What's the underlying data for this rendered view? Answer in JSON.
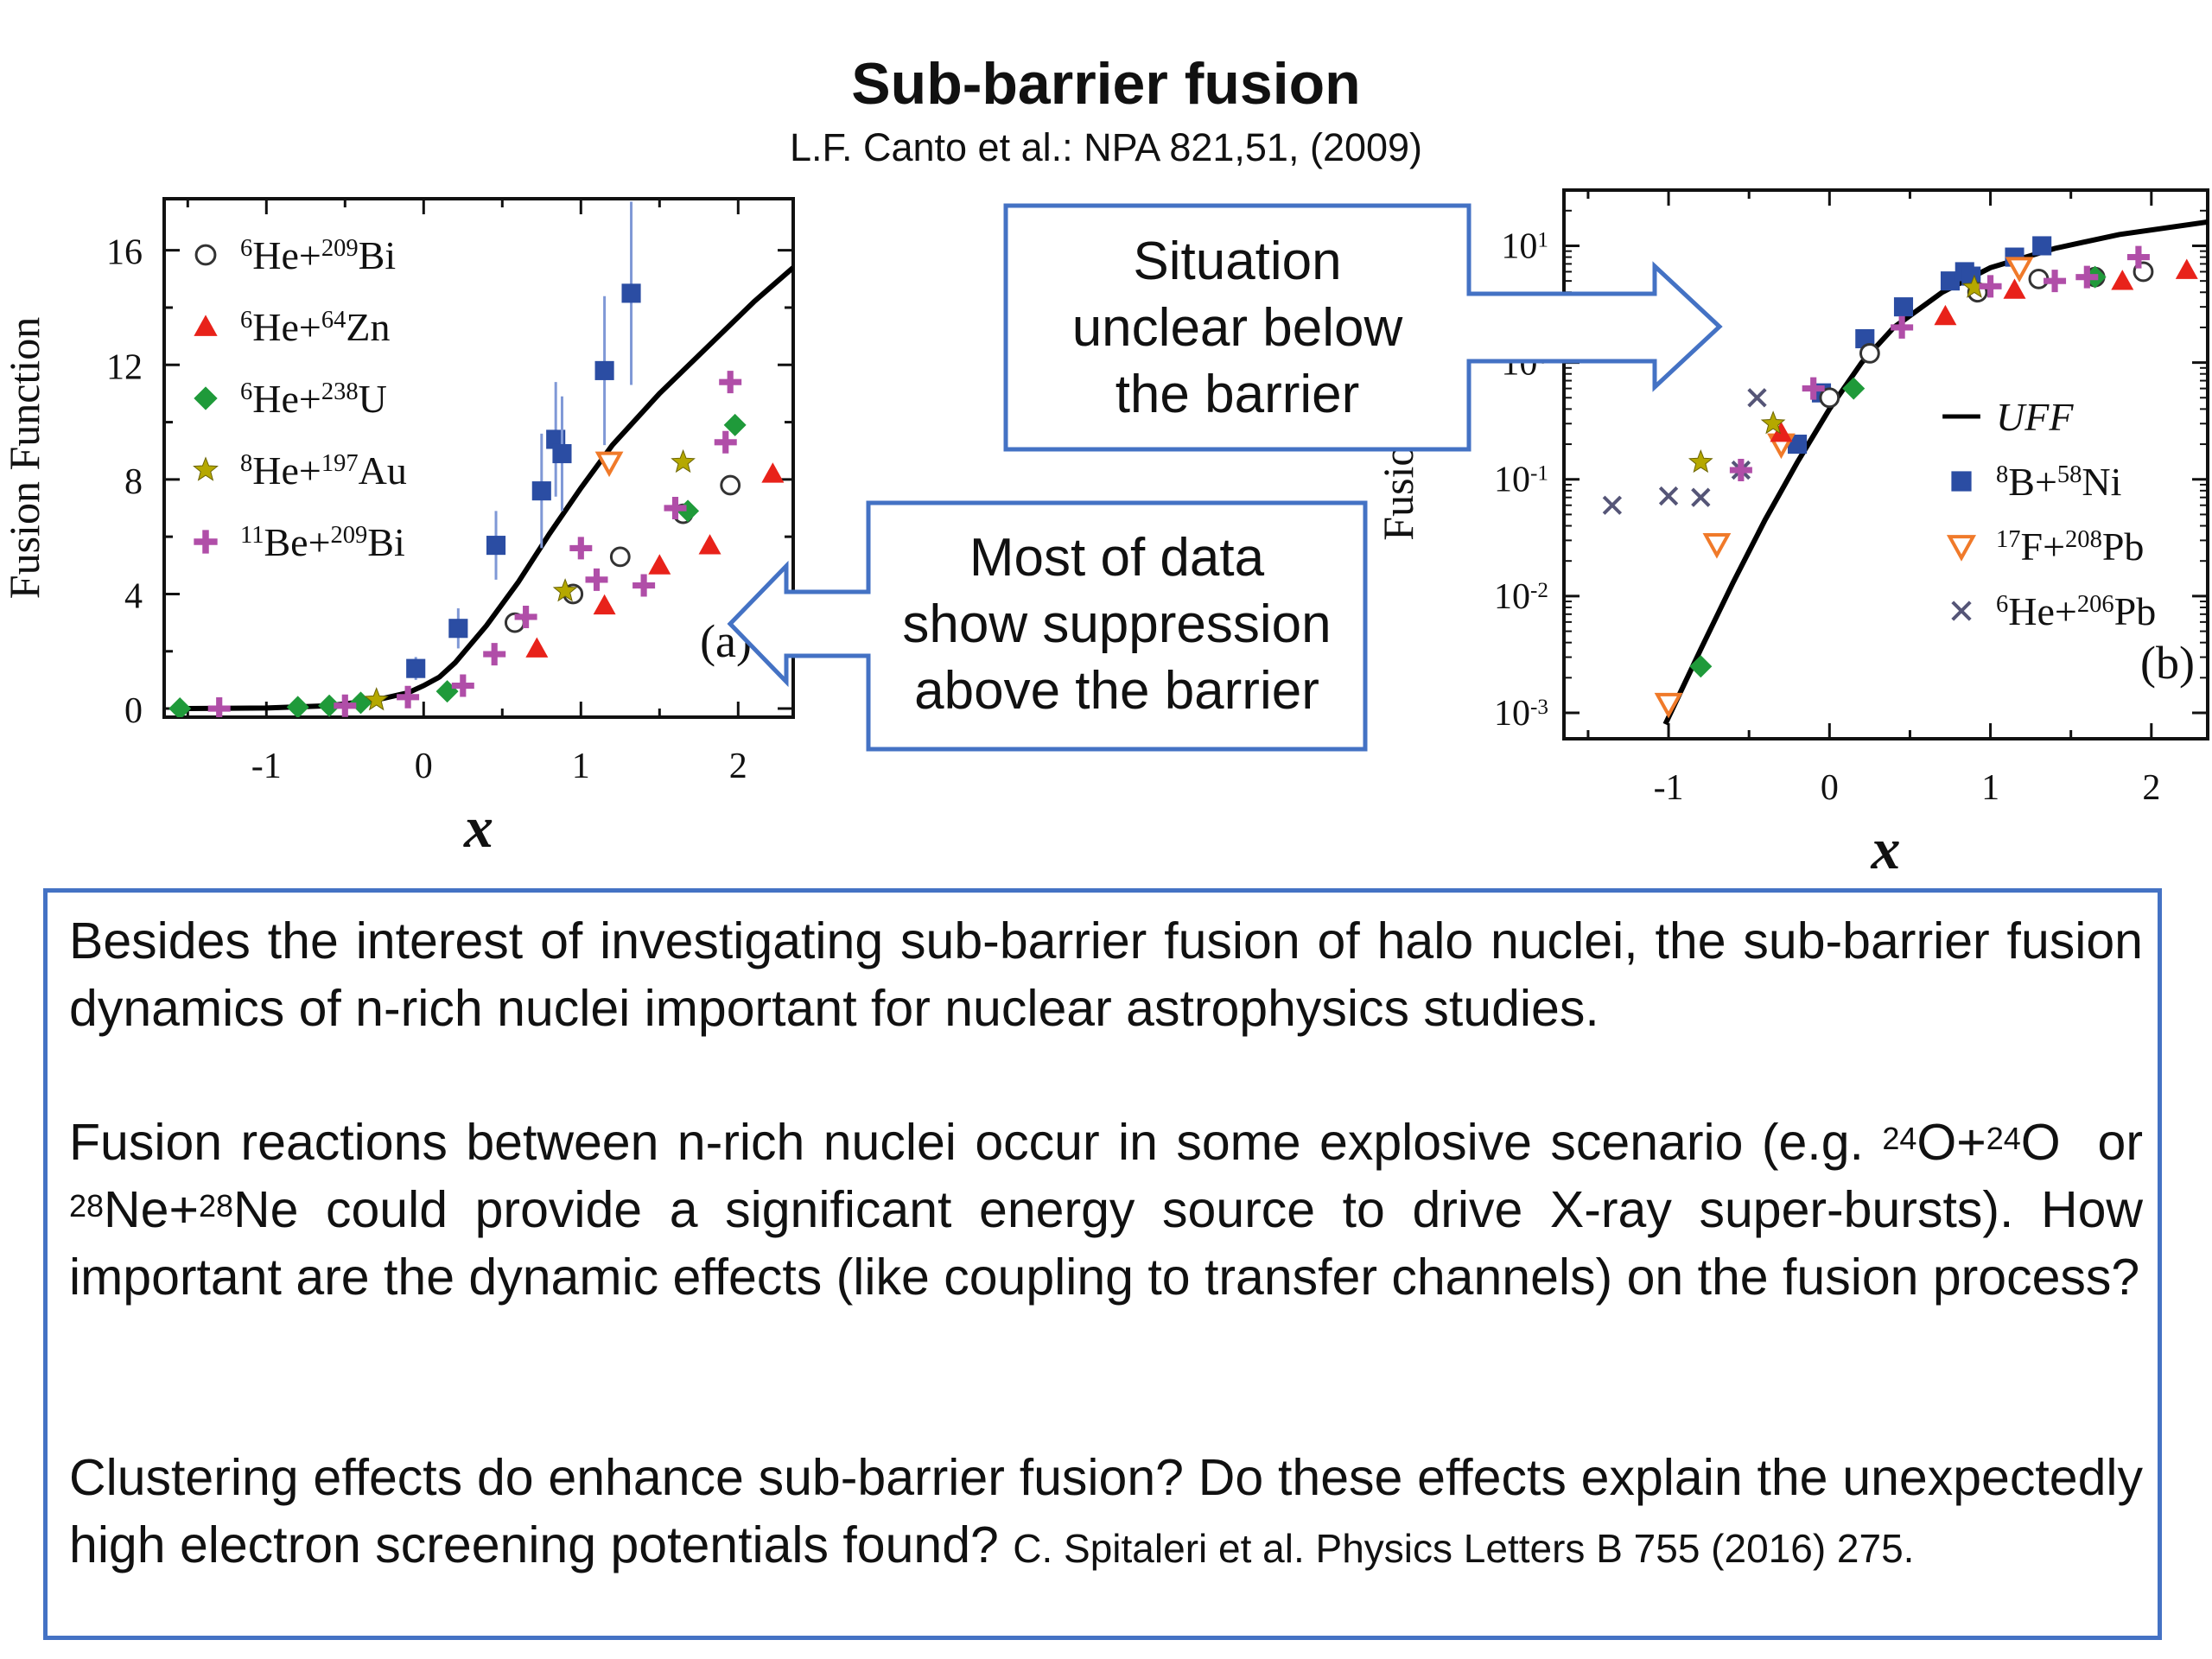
{
  "header": {
    "title": "Sub-barrier fusion",
    "citation": "L.F.  Canto et al.: NPA 821,51, (2009)"
  },
  "chart_data": [
    {
      "type": "scatter",
      "panel_label": "(a)",
      "xlabel": "x",
      "ylabel": "Fusion Function",
      "xlim": [
        -1.65,
        2.35
      ],
      "ylim": [
        -0.3,
        17.8
      ],
      "xticks": [
        "-1",
        "0",
        "1",
        "2"
      ],
      "yticks": [
        "0",
        "4",
        "8",
        "12",
        "16"
      ],
      "legend": [
        {
          "label": "6He+209Bi",
          "marker": "circle-open",
          "color": "#333333"
        },
        {
          "label": "6He+64Zn",
          "marker": "triangle",
          "color": "#e8221a"
        },
        {
          "label": "6He+238U",
          "marker": "diamond",
          "color": "#1f9a3a"
        },
        {
          "label": "8He+197Au",
          "marker": "star",
          "color": "#b5a800"
        },
        {
          "label": "11Be+209Bi",
          "marker": "plus",
          "color": "#b04ea8"
        }
      ],
      "curve": {
        "name": "UFF",
        "x": [
          -1.6,
          -1.0,
          -0.6,
          -0.3,
          -0.1,
          0.0,
          0.1,
          0.2,
          0.4,
          0.6,
          0.8,
          1.0,
          1.2,
          1.5,
          1.8,
          2.1,
          2.35
        ],
        "y": [
          0.0,
          0.02,
          0.1,
          0.3,
          0.55,
          0.8,
          1.1,
          1.6,
          2.9,
          4.4,
          6.1,
          7.7,
          9.2,
          11.0,
          12.6,
          14.2,
          15.4
        ]
      },
      "series": [
        {
          "name": "6He+209Bi",
          "x": [
            0.58,
            0.95,
            1.25,
            1.65,
            1.95
          ],
          "y": [
            3.0,
            4.0,
            5.3,
            6.8,
            7.8
          ]
        },
        {
          "name": "6He+64Zn",
          "x": [
            0.72,
            1.15,
            1.5,
            1.82,
            2.22
          ],
          "y": [
            2.1,
            3.6,
            5.0,
            5.7,
            8.2
          ]
        },
        {
          "name": "6He+238U",
          "x": [
            -1.55,
            -0.8,
            -0.6,
            -0.4,
            0.15,
            1.68,
            1.98
          ],
          "y": [
            0.0,
            0.05,
            0.1,
            0.2,
            0.6,
            6.9,
            9.9
          ]
        },
        {
          "name": "8He+197Au",
          "x": [
            -0.3,
            0.9,
            1.65
          ],
          "y": [
            0.3,
            4.1,
            8.6
          ]
        },
        {
          "name": "11Be+209Bi",
          "x": [
            -1.3,
            -0.5,
            -0.1,
            0.25,
            0.45,
            0.65,
            1.0,
            1.1,
            1.4,
            1.6,
            1.92,
            1.95
          ],
          "y": [
            0.0,
            0.1,
            0.4,
            0.8,
            1.9,
            3.2,
            5.6,
            4.5,
            4.3,
            7.0,
            9.3,
            11.4
          ]
        },
        {
          "name": "8B+58Ni",
          "x": [
            -0.05,
            0.22,
            0.46,
            0.75,
            0.84,
            0.88,
            1.15,
            1.32
          ],
          "y": [
            1.4,
            2.8,
            5.7,
            7.6,
            9.4,
            8.9,
            11.8,
            14.5
          ],
          "err": [
            0.4,
            0.7,
            1.2,
            2.0,
            2.0,
            2.0,
            2.6,
            3.2
          ]
        },
        {
          "name": "17F+208Pb",
          "x": [
            1.18
          ],
          "y": [
            8.6
          ]
        }
      ]
    },
    {
      "type": "scatter",
      "panel_label": "(b)",
      "xlabel": "x",
      "ylabel": "Fusion F",
      "yscale": "log",
      "xlim": [
        -1.65,
        2.35
      ],
      "ylim": [
        0.0006,
        30
      ],
      "xticks": [
        "-1",
        "0",
        "1",
        "2"
      ],
      "yticks": [
        "10-3",
        "10-2",
        "10-1",
        "100",
        "101"
      ],
      "legend": [
        {
          "label": "UFF",
          "marker": "line",
          "color": "#000000"
        },
        {
          "label": "8B+58Ni",
          "marker": "square",
          "color": "#2b4da3"
        },
        {
          "label": "17F+208Pb",
          "marker": "triangle-down",
          "color": "#f07a2a"
        },
        {
          "label": "6He+206Pb",
          "marker": "cross",
          "color": "#555577"
        }
      ],
      "curve": {
        "name": "UFF",
        "x": [
          -1.02,
          -0.8,
          -0.6,
          -0.4,
          -0.2,
          0.0,
          0.2,
          0.4,
          0.7,
          1.0,
          1.4,
          1.8,
          2.35
        ],
        "y": [
          0.0008,
          0.0035,
          0.013,
          0.045,
          0.14,
          0.4,
          1.0,
          2.0,
          4.0,
          6.5,
          9.5,
          12.5,
          16.0
        ]
      },
      "series": [
        {
          "name": "8B+58Ni",
          "x": [
            -0.2,
            -0.05,
            0.22,
            0.46,
            0.75,
            0.84,
            0.88,
            1.15,
            1.32
          ],
          "y": [
            0.2,
            0.55,
            1.6,
            3.0,
            5.0,
            6.0,
            5.5,
            8.0,
            10.0
          ]
        },
        {
          "name": "17F+208Pb",
          "x": [
            -1.0,
            -0.7,
            -0.3,
            1.18
          ],
          "y": [
            0.0012,
            0.028,
            0.2,
            6.5
          ]
        },
        {
          "name": "6He+206Pb",
          "x": [
            -1.35,
            -1.0,
            -0.8,
            -0.55,
            -0.45
          ],
          "y": [
            0.06,
            0.072,
            0.07,
            0.12,
            0.5
          ]
        },
        {
          "name": "6He+209Bi",
          "x": [
            0.0,
            0.25,
            0.92,
            1.3,
            1.65,
            1.95
          ],
          "y": [
            0.5,
            1.2,
            4.0,
            5.2,
            5.4,
            6.0
          ]
        },
        {
          "name": "6He+64Zn",
          "x": [
            -0.3,
            0.72,
            1.15,
            1.82,
            2.22
          ],
          "y": [
            0.25,
            2.5,
            4.2,
            5.0,
            6.2
          ]
        },
        {
          "name": "6He+238U",
          "x": [
            -0.8,
            0.15,
            1.65
          ],
          "y": [
            0.0025,
            0.6,
            5.4
          ]
        },
        {
          "name": "8He+197Au",
          "x": [
            -0.8,
            -0.35,
            0.9
          ],
          "y": [
            0.14,
            0.3,
            4.4
          ]
        },
        {
          "name": "11Be+209Bi",
          "x": [
            -0.55,
            -0.1,
            0.45,
            1.0,
            1.4,
            1.6,
            1.92
          ],
          "y": [
            0.12,
            0.6,
            2.0,
            4.5,
            5.0,
            5.4,
            8.0
          ]
        }
      ]
    }
  ],
  "callouts": {
    "unclear": [
      "Situation",
      "unclear below",
      "the barrier"
    ],
    "suppression": [
      "Most of data",
      "show suppression",
      "above the barrier"
    ]
  },
  "body": {
    "p1": "Besides the interest of investigating sub-barrier fusion of halo nuclei, the sub-barrier fusion dynamics of n-rich nuclei important for nuclear astrophysics studies.",
    "p2": {
      "intro": "Fusion reactions between n-rich nuclei occur in some explosive scenario (e.g.",
      "m1": "24",
      "s1": "O+",
      "m2": "24",
      "s2": "O",
      "or": "or",
      "m3": "28",
      "s3": "Ne+",
      "m4": "28",
      "rest": "Ne could provide a significant energy source to drive X-ray super-bursts). How important are the dynamic effects (like coupling  to transfer channels) on the fusion process?"
    },
    "p3": {
      "text": "Clustering effects do enhance sub-barrier fusion? Do these effects explain the unexpectedly high  electron screening potentials found?",
      "ref": "C. Spitaleri et al. Physics Letters B 755 (2016) 275."
    }
  }
}
